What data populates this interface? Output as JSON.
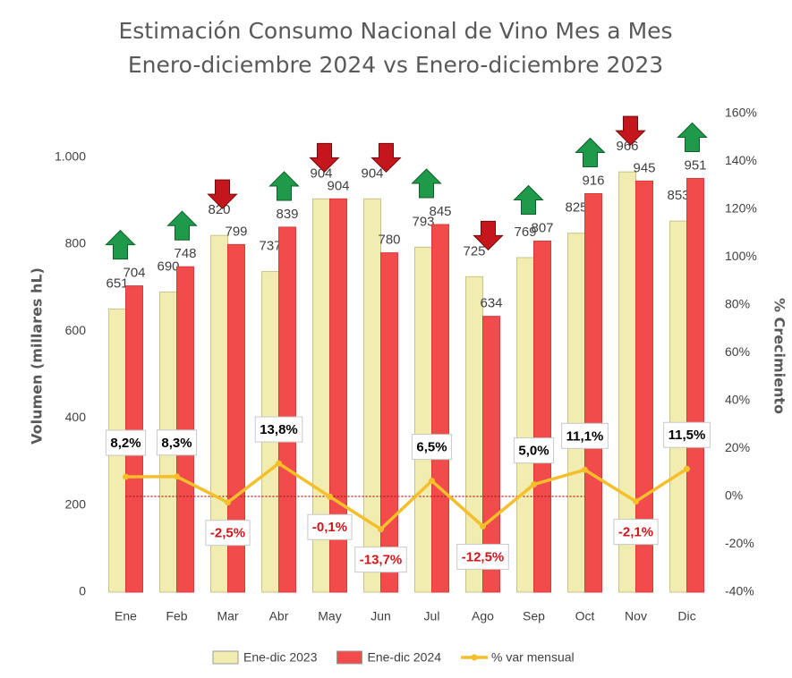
{
  "chart_data": {
    "type": "bar-line",
    "title": "Estimación Consumo Nacional de Vino Mes a Mes",
    "subtitle": "Enero-diciembre 2024 vs Enero-diciembre 2023",
    "y_label": "Volumen (millares hL)",
    "y2_label": "% Crecimiento",
    "categories": [
      "Ene",
      "Feb",
      "Mar",
      "Abr",
      "May",
      "Jun",
      "Jul",
      "Ago",
      "Sep",
      "Oct",
      "Nov",
      "Dic"
    ],
    "ylim": [
      0,
      1100
    ],
    "yticks": [
      0,
      200,
      400,
      600,
      800,
      {
        "value": 1000,
        "label": "1.000"
      }
    ],
    "y2lim": [
      -40,
      160
    ],
    "y2ticks": [
      {
        "value": -40,
        "label": "-40%"
      },
      {
        "value": -20,
        "label": "-20%"
      },
      {
        "value": 0,
        "label": "0%"
      },
      {
        "value": 20,
        "label": "20%"
      },
      {
        "value": 40,
        "label": "40%"
      },
      {
        "value": 60,
        "label": "60%"
      },
      {
        "value": 80,
        "label": "80%"
      },
      {
        "value": 100,
        "label": "100%"
      },
      {
        "value": 120,
        "label": "120%"
      },
      {
        "value": 140,
        "label": "140%"
      },
      {
        "value": 160,
        "label": "160%"
      }
    ],
    "series": [
      {
        "name": "Ene-dic 2023",
        "type": "bar",
        "color": "#f1ecb0",
        "values": [
          651,
          690,
          820,
          737,
          904,
          904,
          793,
          725,
          769,
          825,
          966,
          853
        ]
      },
      {
        "name": "Ene-dic 2024",
        "type": "bar",
        "color": "#f14b4b",
        "values": [
          704,
          748,
          799,
          839,
          904,
          780,
          845,
          634,
          807,
          916,
          945,
          951
        ]
      },
      {
        "name": "% var mensual",
        "type": "line",
        "axis": "y2",
        "color": "#f4bf2a",
        "values": [
          8.2,
          8.3,
          -2.5,
          13.8,
          -0.1,
          -13.7,
          6.5,
          -12.5,
          5.0,
          11.1,
          -2.1,
          11.5
        ],
        "value_labels": [
          "8,2%",
          "8,3%",
          "-2,5%",
          "13,8%",
          "-0,1%",
          "-13,7%",
          "6,5%",
          "-12,5%",
          "5,0%",
          "11,1%",
          "-2,1%",
          "11,5%"
        ]
      }
    ]
  }
}
